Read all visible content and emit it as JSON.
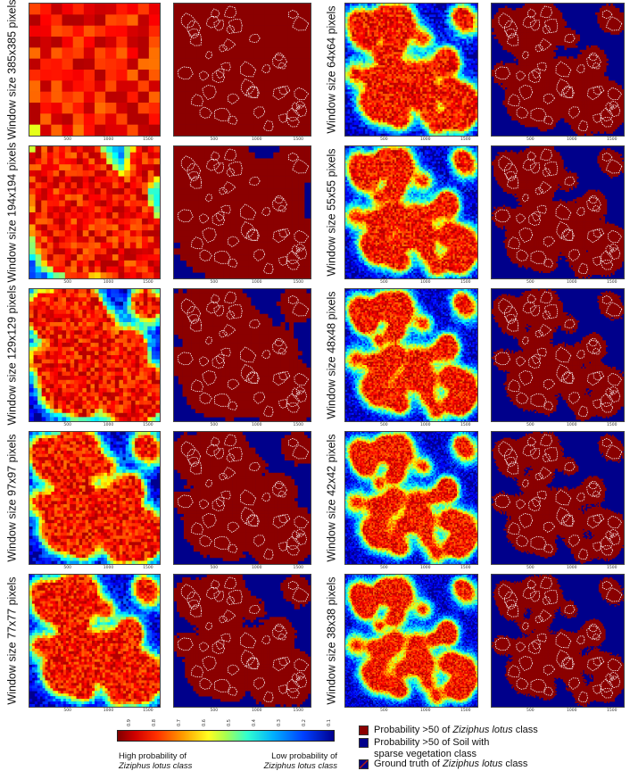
{
  "rows": [
    {
      "left_label": "Window size 385x385 pixels",
      "right_label": "Window size 64x64 pixels",
      "left_cells": 12,
      "right_cells": 60
    },
    {
      "left_label": "Window size 194x194 pixels",
      "right_label": "Window size 55x55 pixels",
      "left_cells": 22,
      "right_cells": 70
    },
    {
      "left_label": "Window size 129x129 pixels",
      "right_label": "Window size 48x48 pixels",
      "left_cells": 32,
      "right_cells": 80
    },
    {
      "left_label": "Window size 97x97 pixels",
      "right_label": "Window size 42x42 pixels",
      "left_cells": 42,
      "right_cells": 90
    },
    {
      "left_label": "Window size 77x77 pixels",
      "right_label": "Window size 38x38 pixels",
      "left_cells": 50,
      "right_cells": 100
    }
  ],
  "axis_ticks": [
    "500",
    "1000",
    "1500"
  ],
  "colorbar": {
    "ticks": [
      "0.9",
      "0.8",
      "0.7",
      "0.6",
      "0.5",
      "0.4",
      "0.3",
      "0.2",
      "0.1"
    ],
    "left_caption_line1": "High probability of",
    "left_caption_line2": "Ziziphus lotus class",
    "right_caption_line1": "Low probability of",
    "right_caption_line2": "Ziziphus lotus class"
  },
  "legend": {
    "item1_prefix": "Probability >50 of ",
    "item1_italic": "Ziziphus lotus",
    "item1_suffix": " class",
    "item2_line1": "Probability >50 of Soil with",
    "item2_line2": "sparse vegetation class",
    "item3_prefix": "Ground truth of ",
    "item3_italic": "Ziziphus lotus",
    "item3_suffix": " class"
  },
  "colors": {
    "zizi_red": "#8b0000",
    "soil_blue": "#00008b",
    "outline": "#ffffff"
  }
}
